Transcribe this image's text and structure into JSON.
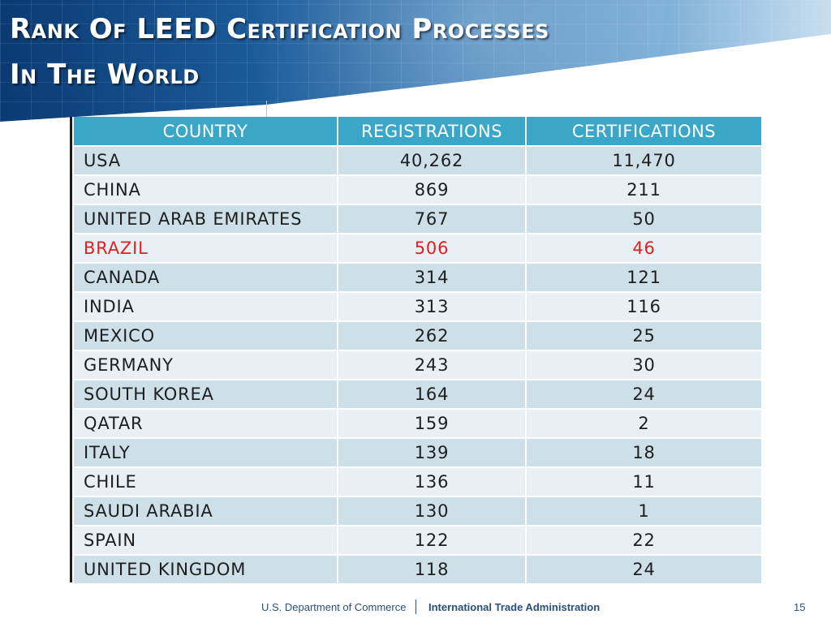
{
  "title": {
    "line1": "Rank Of LEED Certification Processes",
    "line2": "In The World"
  },
  "table": {
    "headers": [
      "COUNTRY",
      "REGISTRATIONS",
      "CERTIFICATIONS"
    ],
    "rows": [
      {
        "country": "USA",
        "registrations": "40,262",
        "certifications": "11,470"
      },
      {
        "country": "CHINA",
        "registrations": "869",
        "certifications": "211"
      },
      {
        "country": "UNITED ARAB EMIRATES",
        "registrations": "767",
        "certifications": "50"
      },
      {
        "country": "BRAZIL",
        "registrations": "506",
        "certifications": "46",
        "highlight": true
      },
      {
        "country": "CANADA",
        "registrations": "314",
        "certifications": "121"
      },
      {
        "country": "INDIA",
        "registrations": "313",
        "certifications": "116"
      },
      {
        "country": "MEXICO",
        "registrations": "262",
        "certifications": "25"
      },
      {
        "country": "GERMANY",
        "registrations": "243",
        "certifications": "30"
      },
      {
        "country": "SOUTH KOREA",
        "registrations": "164",
        "certifications": "24"
      },
      {
        "country": "QATAR",
        "registrations": "159",
        "certifications": "2"
      },
      {
        "country": "ITALY",
        "registrations": "139",
        "certifications": "18"
      },
      {
        "country": "CHILE",
        "registrations": "136",
        "certifications": "11"
      },
      {
        "country": "SAUDI ARABIA",
        "registrations": "130",
        "certifications": "1"
      },
      {
        "country": "SPAIN",
        "registrations": "122",
        "certifications": "22"
      },
      {
        "country": "UNITED KINGDOM",
        "registrations": "118",
        "certifications": "24"
      }
    ]
  },
  "footer": {
    "department": "U.S. Department of Commerce",
    "agency": "International Trade Administration",
    "page_number": "15"
  },
  "colors": {
    "header_fill": "#3aa7c9",
    "row_odd": "#cde0ea",
    "row_even": "#e8f0f5",
    "highlight_text": "#e02020",
    "footer_text": "#2b4f78"
  }
}
